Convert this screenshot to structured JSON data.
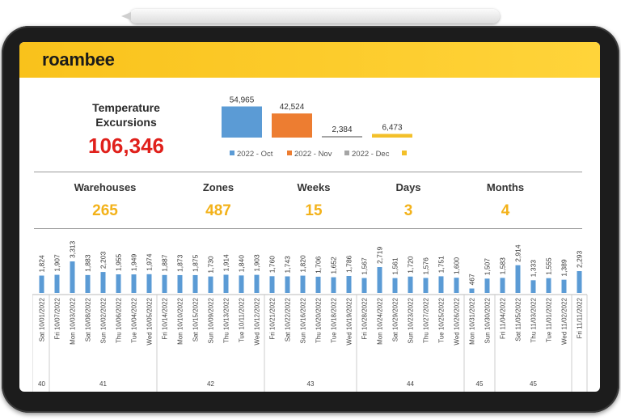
{
  "app": {
    "logo": "roambee"
  },
  "summary": {
    "label": "Temperature Excursions",
    "value": "106,346"
  },
  "colors": {
    "accent": "#f9c21b",
    "kpi_red": "#e0201b",
    "stat_yellow": "#f3b21a",
    "bar_blue": "#5b9bd5"
  },
  "stats": [
    {
      "label": "Warehouses",
      "value": "265"
    },
    {
      "label": "Zones",
      "value": "487"
    },
    {
      "label": "Weeks",
      "value": "15"
    },
    {
      "label": "Days",
      "value": "3"
    },
    {
      "label": "Months",
      "value": "4"
    }
  ],
  "chart_data": [
    {
      "type": "bar",
      "categories": [
        "2022 - Oct",
        "2022 - Nov",
        "2022 - Dec",
        ""
      ],
      "values": [
        54965,
        42524,
        2384,
        6473
      ],
      "value_labels": [
        "54,965",
        "42,524",
        "2,384",
        "6,473"
      ],
      "colors": [
        "#5b9bd5",
        "#ed7d31",
        "#a5a5a5",
        "#f3c02a"
      ],
      "legend": [
        "2022 - Oct",
        "2022 - Nov",
        "2022 - Dec",
        ""
      ],
      "legend_position": "bottom",
      "ylim": [
        0,
        60000
      ],
      "grid": false
    },
    {
      "type": "bar",
      "categories": [
        "Sat 10/01/2022",
        "Fri 10/07/2022",
        "Mon 10/03/2022",
        "Sat 10/08/2022",
        "Sun 10/02/2022",
        "Thu 10/06/2022",
        "Tue 10/04/2022",
        "Wed 10/05/2022",
        "Fri 10/14/2022",
        "Mon 10/10/2022",
        "Sat 10/15/2022",
        "Sun 10/09/2022",
        "Thu 10/13/2022",
        "Tue 10/11/2022",
        "Wed 10/12/2022",
        "Fri 10/21/2022",
        "Sat 10/22/2022",
        "Sun 10/16/2022",
        "Thu 10/20/2022",
        "Tue 10/18/2022",
        "Wed 10/19/2022",
        "Fri 10/28/2022",
        "Mon 10/24/2022",
        "Sat 10/29/2022",
        "Sun 10/23/2022",
        "Thu 10/27/2022",
        "Tue 10/25/2022",
        "Wed 10/26/2022",
        "Mon 10/31/2022",
        "Sun 10/30/2022",
        "Fri 11/04/2022",
        "Sat 11/05/2022",
        "Thu 11/03/2022",
        "Tue 11/01/2022",
        "Wed 11/02/2022",
        "Fri 11/11/2022"
      ],
      "values": [
        1824,
        1907,
        3313,
        1883,
        2203,
        1955,
        1949,
        1974,
        1887,
        1873,
        1875,
        1730,
        1914,
        1840,
        1903,
        1760,
        1743,
        1820,
        1706,
        1652,
        1786,
        1567,
        2719,
        1561,
        1720,
        1576,
        1751,
        1600,
        467,
        1507,
        1583,
        2914,
        1333,
        1555,
        1389,
        2293
      ],
      "value_labels": [
        "1,824",
        "1,907",
        "3,313",
        "1,883",
        "2,203",
        "1,955",
        "1,949",
        "1,974",
        "1,887",
        "1,873",
        "1,875",
        "1,730",
        "1,914",
        "1,840",
        "1,903",
        "1,760",
        "1,743",
        "1,820",
        "1,706",
        "1,652",
        "1,786",
        "1,567",
        "2,719",
        "1,561",
        "1,720",
        "1,576",
        "1,751",
        "1,600",
        "467",
        "1,507",
        "1,583",
        "2,914",
        "1,333",
        "1,555",
        "1,389",
        "2,293"
      ],
      "week_groups": [
        {
          "label": "40",
          "count": 1
        },
        {
          "label": "41",
          "count": 7
        },
        {
          "label": "42",
          "count": 7
        },
        {
          "label": "43",
          "count": 6
        },
        {
          "label": "44",
          "count": 7
        },
        {
          "label": "45",
          "count": 2
        },
        {
          "label": "45",
          "count": 5
        },
        {
          "label": "",
          "count": 1
        }
      ],
      "ylim": [
        0,
        3400
      ],
      "grid": false
    }
  ]
}
